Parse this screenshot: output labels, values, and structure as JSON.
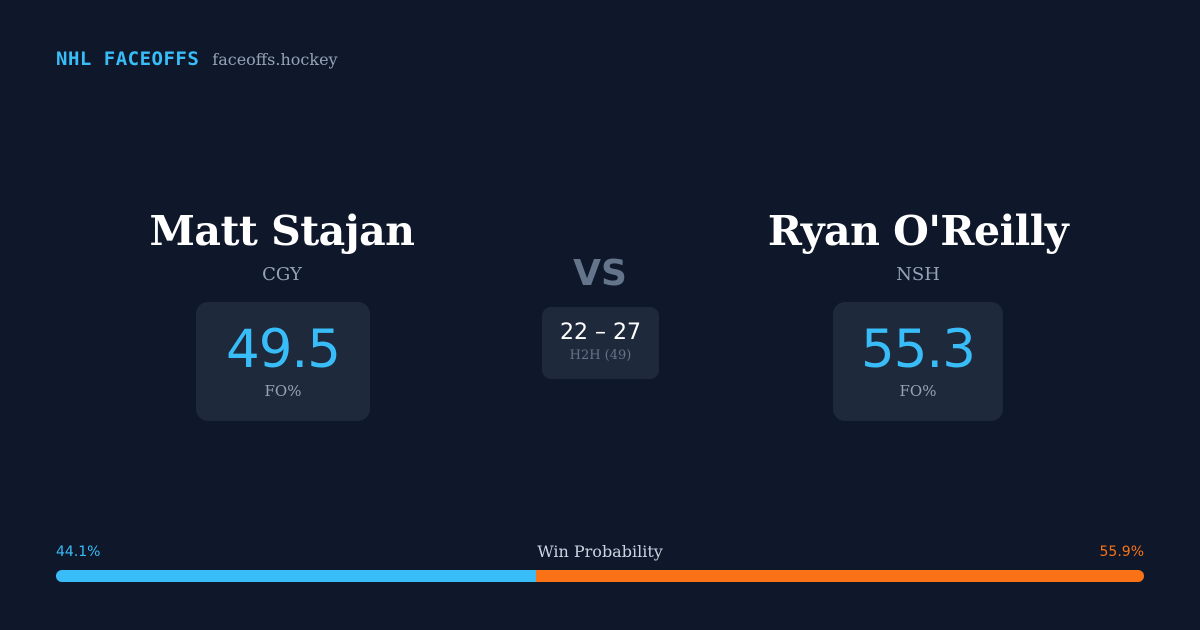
{
  "brand": {
    "title": "NHL FACEOFFS",
    "site": "faceoffs.hockey"
  },
  "player_left": {
    "name": "Matt Stajan",
    "team": "CGY",
    "fo_value": "49.5",
    "fo_label": "FO%"
  },
  "vs_label": "VS",
  "head_to_head": {
    "score": "22 – 27",
    "label": "H2H (49)"
  },
  "player_right": {
    "name": "Ryan O'Reilly",
    "team": "NSH",
    "fo_value": "55.3",
    "fo_label": "FO%"
  },
  "win_probability": {
    "title": "Win Probability",
    "left_label": "44.1%",
    "right_label": "55.9%",
    "left_value": 44.1,
    "right_value": 55.9
  },
  "colors": {
    "background": "#0f172a",
    "card": "#1e293b",
    "accent_blue": "#38bdf8",
    "accent_orange": "#f97316",
    "muted_text": "#94a3b8",
    "vs_text": "#64748b"
  }
}
